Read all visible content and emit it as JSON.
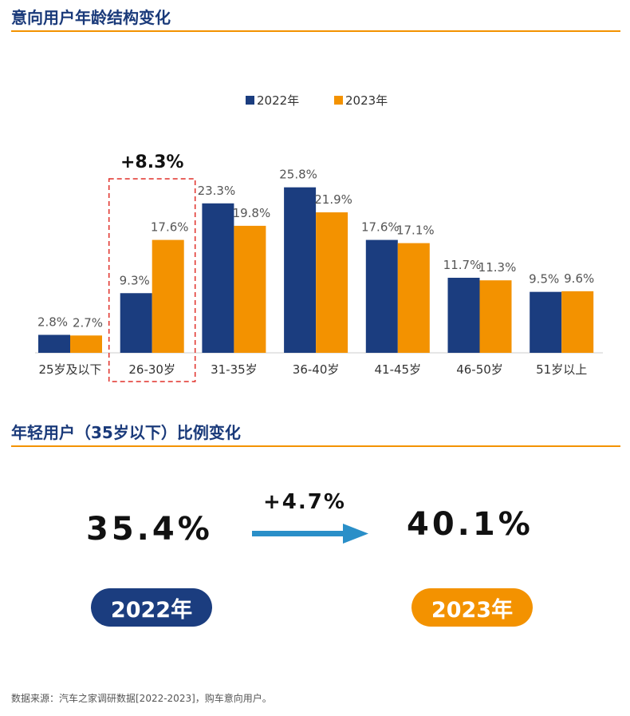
{
  "colors": {
    "series_2022": "#1b3d7f",
    "series_2023": "#f39200",
    "accent_rule": "#f39200",
    "arrow": "#2a8fc8",
    "highlight_box": "#e0302a"
  },
  "section1": {
    "title": "意向用户年龄结构变化"
  },
  "chart_data": {
    "type": "bar",
    "title": "",
    "categories": [
      "25岁及以下",
      "26-30岁",
      "31-35岁",
      "36-40岁",
      "41-45岁",
      "46-50岁",
      "51岁以上"
    ],
    "series": [
      {
        "name": "2022年",
        "values": [
          2.8,
          9.3,
          23.3,
          25.8,
          17.6,
          11.7,
          9.5
        ],
        "labels": [
          "2.8%",
          "9.3%",
          "23.3%",
          "25.8%",
          "17.6%",
          "11.7%",
          "9.5%"
        ]
      },
      {
        "name": "2023年",
        "values": [
          2.7,
          17.6,
          19.8,
          21.9,
          17.1,
          11.3,
          9.6
        ],
        "labels": [
          "2.7%",
          "17.6%",
          "19.8%",
          "21.9%",
          "17.1%",
          "11.3%",
          "9.6%"
        ]
      }
    ],
    "ylim": [
      0,
      28
    ],
    "grid": false,
    "legend": "top-center",
    "annotation": {
      "text": "+8.3%",
      "category": "26-30岁"
    }
  },
  "section2": {
    "title": "年轻用户（35岁以下）比例变化",
    "value_2022": "35.4%",
    "value_2023": "40.1%",
    "change": "+4.7%",
    "year_2022": "2022年",
    "year_2023": "2023年"
  },
  "source": "数据来源：汽车之家调研数据[2022-2023]，购车意向用户。"
}
